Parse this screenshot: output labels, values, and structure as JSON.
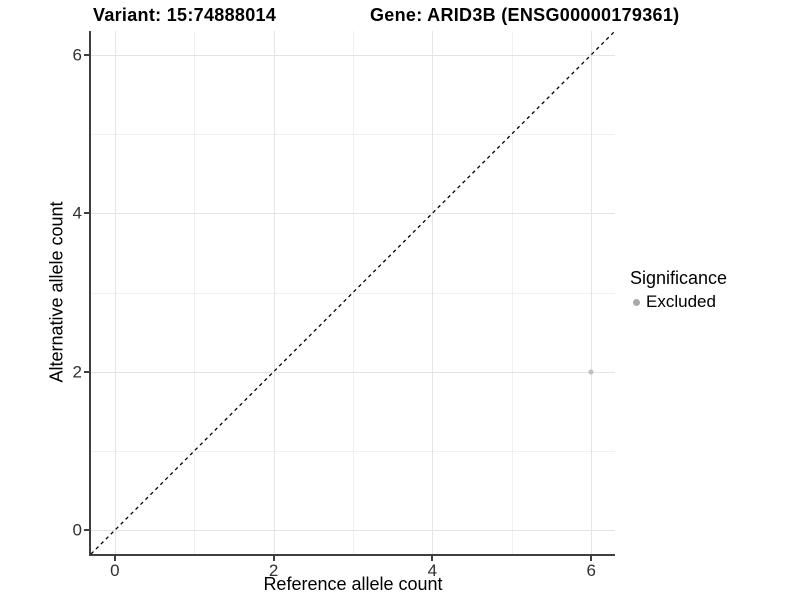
{
  "header": {
    "title_left": "Variant: 15:74888014",
    "title_right": "Gene: ARID3B (ENSG00000179361)"
  },
  "chart_data": {
    "type": "scatter",
    "title": "Variant: 15:74888014  Gene: ARID3B (ENSG00000179361)",
    "xlabel": "Reference allele count",
    "ylabel": "Alternative allele count",
    "xlim": [
      -0.3,
      6.3
    ],
    "ylim": [
      -0.3,
      6.3
    ],
    "x_ticks_major": [
      0,
      2,
      4,
      6
    ],
    "x_ticks_minor": [
      1,
      3,
      5
    ],
    "y_ticks_major": [
      0,
      2,
      4,
      6
    ],
    "y_ticks_minor": [
      1,
      3,
      5
    ],
    "grid": "major+minor",
    "identity_line": {
      "style": "dashed",
      "color": "#000000",
      "from": [
        -0.3,
        -0.3
      ],
      "to": [
        6.3,
        6.3
      ]
    },
    "points": [
      {
        "x": 6,
        "y": 2,
        "series": "Excluded",
        "color": "#bfbfbf",
        "size": 5
      }
    ],
    "legend": {
      "position": "right",
      "title": "Significance",
      "entries": [
        {
          "label": "Excluded",
          "color": "#a9a9a9"
        }
      ]
    },
    "colors": {
      "grid_major": "#e4e4e4",
      "grid_minor": "#f0f0f0",
      "axis": "#3f3f3f",
      "tick_label": "#303030"
    }
  }
}
